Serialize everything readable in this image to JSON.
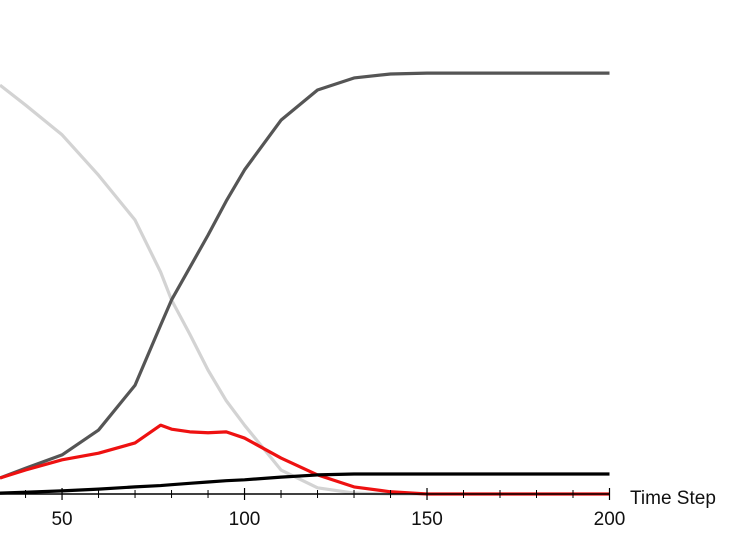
{
  "chart_data": {
    "type": "line",
    "x_label": "Time Step",
    "x": [
      33,
      40,
      50,
      60,
      70,
      77,
      80,
      85,
      90,
      95,
      100,
      110,
      120,
      130,
      140,
      150,
      200
    ],
    "series": [
      {
        "color": "#d3d3d3",
        "values": [
          0.921,
          0.876,
          0.809,
          0.718,
          0.617,
          0.5,
          0.437,
          0.36,
          0.279,
          0.21,
          0.155,
          0.054,
          0.014,
          0.002,
          0,
          0,
          0
        ]
      },
      {
        "color": "#555555",
        "values": [
          0.036,
          0.058,
          0.088,
          0.144,
          0.245,
          0.38,
          0.437,
          0.51,
          0.583,
          0.66,
          0.73,
          0.842,
          0.91,
          0.937,
          0.946,
          0.948,
          0.948
        ]
      },
      {
        "color": "#ee1111",
        "values": [
          0.036,
          0.054,
          0.077,
          0.092,
          0.115,
          0.155,
          0.146,
          0.14,
          0.138,
          0.14,
          0.126,
          0.081,
          0.043,
          0.016,
          0.005,
          0,
          0
        ]
      },
      {
        "color": "#000000",
        "values": [
          0.002,
          0.004,
          0.007,
          0.011,
          0.016,
          0.019,
          0.021,
          0.024,
          0.027,
          0.03,
          0.032,
          0.038,
          0.043,
          0.045,
          0.045,
          0.045,
          0.045
        ]
      }
    ],
    "xlim": [
      33,
      200
    ],
    "ylim": [
      0,
      1
    ],
    "xticks": [
      50,
      100,
      150,
      200
    ],
    "xminorticks": [
      40,
      60,
      70,
      80,
      90,
      110,
      120,
      130,
      140,
      160,
      170,
      180,
      190
    ]
  }
}
